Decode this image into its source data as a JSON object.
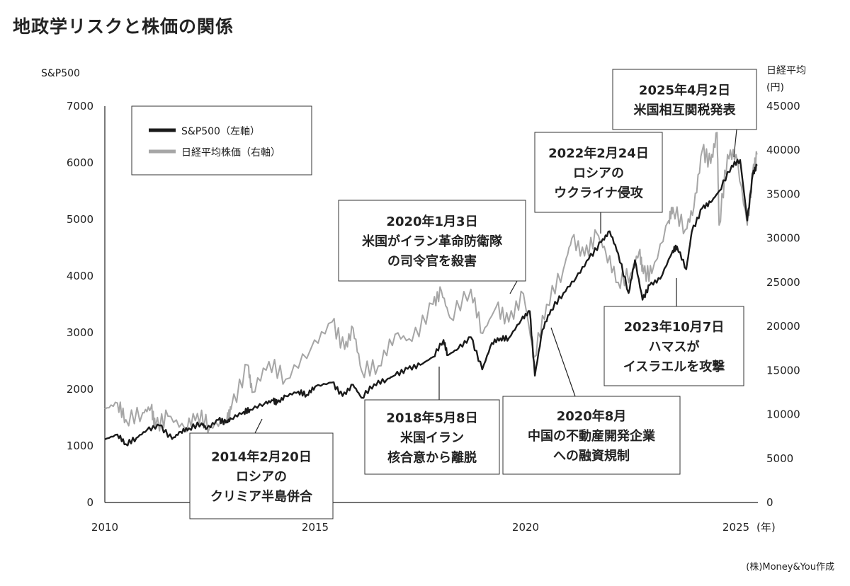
{
  "title": "地政学リスクと株価の関係",
  "credit": "(株)Money&You作成",
  "chart_data": {
    "type": "line",
    "title": "地政学リスクと株価の関係",
    "left_axis": {
      "label": "S&P500",
      "range": [
        0,
        7000
      ],
      "ticks": [
        "0",
        "1000",
        "2000",
        "3000",
        "4000",
        "5000",
        "6000",
        "7000"
      ]
    },
    "right_axis": {
      "label_line1": "日経平均",
      "label_line2": "(円)",
      "range": [
        0,
        45000
      ],
      "ticks": [
        "0",
        "5000",
        "10000",
        "15000",
        "20000",
        "25000",
        "30000",
        "35000",
        "40000",
        "45000"
      ]
    },
    "x_axis": {
      "range": [
        2010,
        2025
      ],
      "ticks": [
        "2010",
        "2015",
        "2020",
        "2025"
      ],
      "unit": "(年)"
    },
    "legend": {
      "placement": "top-left",
      "entries": [
        "S&P500（左軸）",
        "日経平均株価（右軸）"
      ]
    },
    "colors": {
      "sp500": "#1a1a1a",
      "nikkei": "#a6a6a6"
    },
    "series": [
      {
        "name": "S&P500（左軸）",
        "axis": "left",
        "x": [
          2010.0,
          2010.3,
          2010.5,
          2010.75,
          2011.0,
          2011.3,
          2011.6,
          2011.8,
          2012.0,
          2012.3,
          2012.42,
          2012.7,
          2012.88,
          2013.0,
          2013.3,
          2013.45,
          2013.8,
          2014.0,
          2014.1,
          2014.3,
          2014.6,
          2014.8,
          2015.0,
          2015.4,
          2015.65,
          2015.9,
          2016.1,
          2016.4,
          2016.7,
          2016.9,
          2017.2,
          2017.5,
          2017.8,
          2018.05,
          2018.15,
          2018.4,
          2018.7,
          2018.97,
          2019.2,
          2019.4,
          2019.6,
          2019.9,
          2020.1,
          2020.22,
          2020.4,
          2020.6,
          2020.9,
          2021.2,
          2021.5,
          2021.8,
          2022.0,
          2022.2,
          2022.45,
          2022.6,
          2022.78,
          2022.95,
          2023.2,
          2023.5,
          2023.6,
          2023.82,
          2023.95,
          2024.2,
          2024.4,
          2024.6,
          2024.9,
          2025.1,
          2025.27,
          2025.4,
          2025.5
        ],
        "values": [
          1115,
          1200,
          1030,
          1140,
          1280,
          1360,
          1120,
          1250,
          1310,
          1400,
          1300,
          1460,
          1410,
          1480,
          1600,
          1640,
          1750,
          1800,
          1760,
          1880,
          1960,
          1900,
          2050,
          2120,
          1880,
          2080,
          1850,
          2090,
          2170,
          2250,
          2360,
          2430,
          2570,
          2870,
          2600,
          2720,
          2920,
          2350,
          2820,
          2900,
          2900,
          3230,
          3380,
          2240,
          3050,
          3400,
          3700,
          3970,
          4300,
          4600,
          4790,
          4400,
          3700,
          4280,
          3580,
          3840,
          3950,
          4450,
          4520,
          4120,
          4780,
          5200,
          5300,
          5500,
          5950,
          6050,
          4980,
          5800,
          5950
        ]
      },
      {
        "name": "日経平均株価（右軸）",
        "axis": "right",
        "x": [
          2010.0,
          2010.3,
          2010.5,
          2010.9,
          2011.1,
          2011.2,
          2011.5,
          2011.9,
          2012.2,
          2012.5,
          2012.9,
          2013.0,
          2013.4,
          2013.5,
          2013.9,
          2014.3,
          2014.9,
          2015.4,
          2015.7,
          2015.9,
          2016.1,
          2016.5,
          2016.9,
          2017.3,
          2017.8,
          2018.0,
          2018.2,
          2018.7,
          2018.98,
          2019.3,
          2019.6,
          2019.95,
          2020.2,
          2020.5,
          2020.9,
          2021.1,
          2021.4,
          2021.7,
          2021.9,
          2022.2,
          2022.5,
          2022.7,
          2022.8,
          2023.0,
          2023.4,
          2023.5,
          2023.8,
          2024.0,
          2024.2,
          2024.4,
          2024.55,
          2024.6,
          2024.8,
          2025.0,
          2025.27,
          2025.4,
          2025.5
        ],
        "values": [
          10600,
          11300,
          9400,
          10200,
          10800,
          8600,
          9800,
          8400,
          10100,
          8600,
          9400,
          10600,
          15600,
          12500,
          16000,
          14000,
          17500,
          20500,
          17400,
          19800,
          15000,
          15500,
          19100,
          18300,
          22500,
          24000,
          21000,
          24200,
          19200,
          22200,
          20500,
          23700,
          16500,
          22500,
          26500,
          30000,
          28000,
          30500,
          28500,
          25000,
          26000,
          28500,
          26000,
          26000,
          32000,
          33500,
          31000,
          33500,
          40000,
          38500,
          42000,
          31500,
          39500,
          39500,
          31500,
          37500,
          39500
        ]
      }
    ],
    "annotations": [
      {
        "x": 2014.13,
        "lines": [
          "2014年2月20日",
          "ロシアの",
          "クリミア半島併合"
        ]
      },
      {
        "x": 2018.35,
        "lines": [
          "2018年5月8日",
          "米国イラン",
          "核合意から離脱"
        ]
      },
      {
        "x": 2020.6,
        "lines": [
          "2020年8月",
          "中国の不動産開発企業",
          "への融資規制"
        ]
      },
      {
        "x": 2020.0,
        "lines": [
          "2020年1月3日",
          "米国がイラン革命防衛隊",
          "の司令官を殺害"
        ]
      },
      {
        "x": 2022.15,
        "lines": [
          "2022年2月24日",
          "ロシアの",
          "ウクライナ侵攻"
        ]
      },
      {
        "x": 2025.25,
        "lines": [
          "2025年4月2日",
          "米国相互関税発表"
        ]
      },
      {
        "x": 2023.77,
        "lines": [
          "2023年10月7日",
          "ハマスが",
          "イスラエルを攻撃"
        ]
      }
    ]
  }
}
